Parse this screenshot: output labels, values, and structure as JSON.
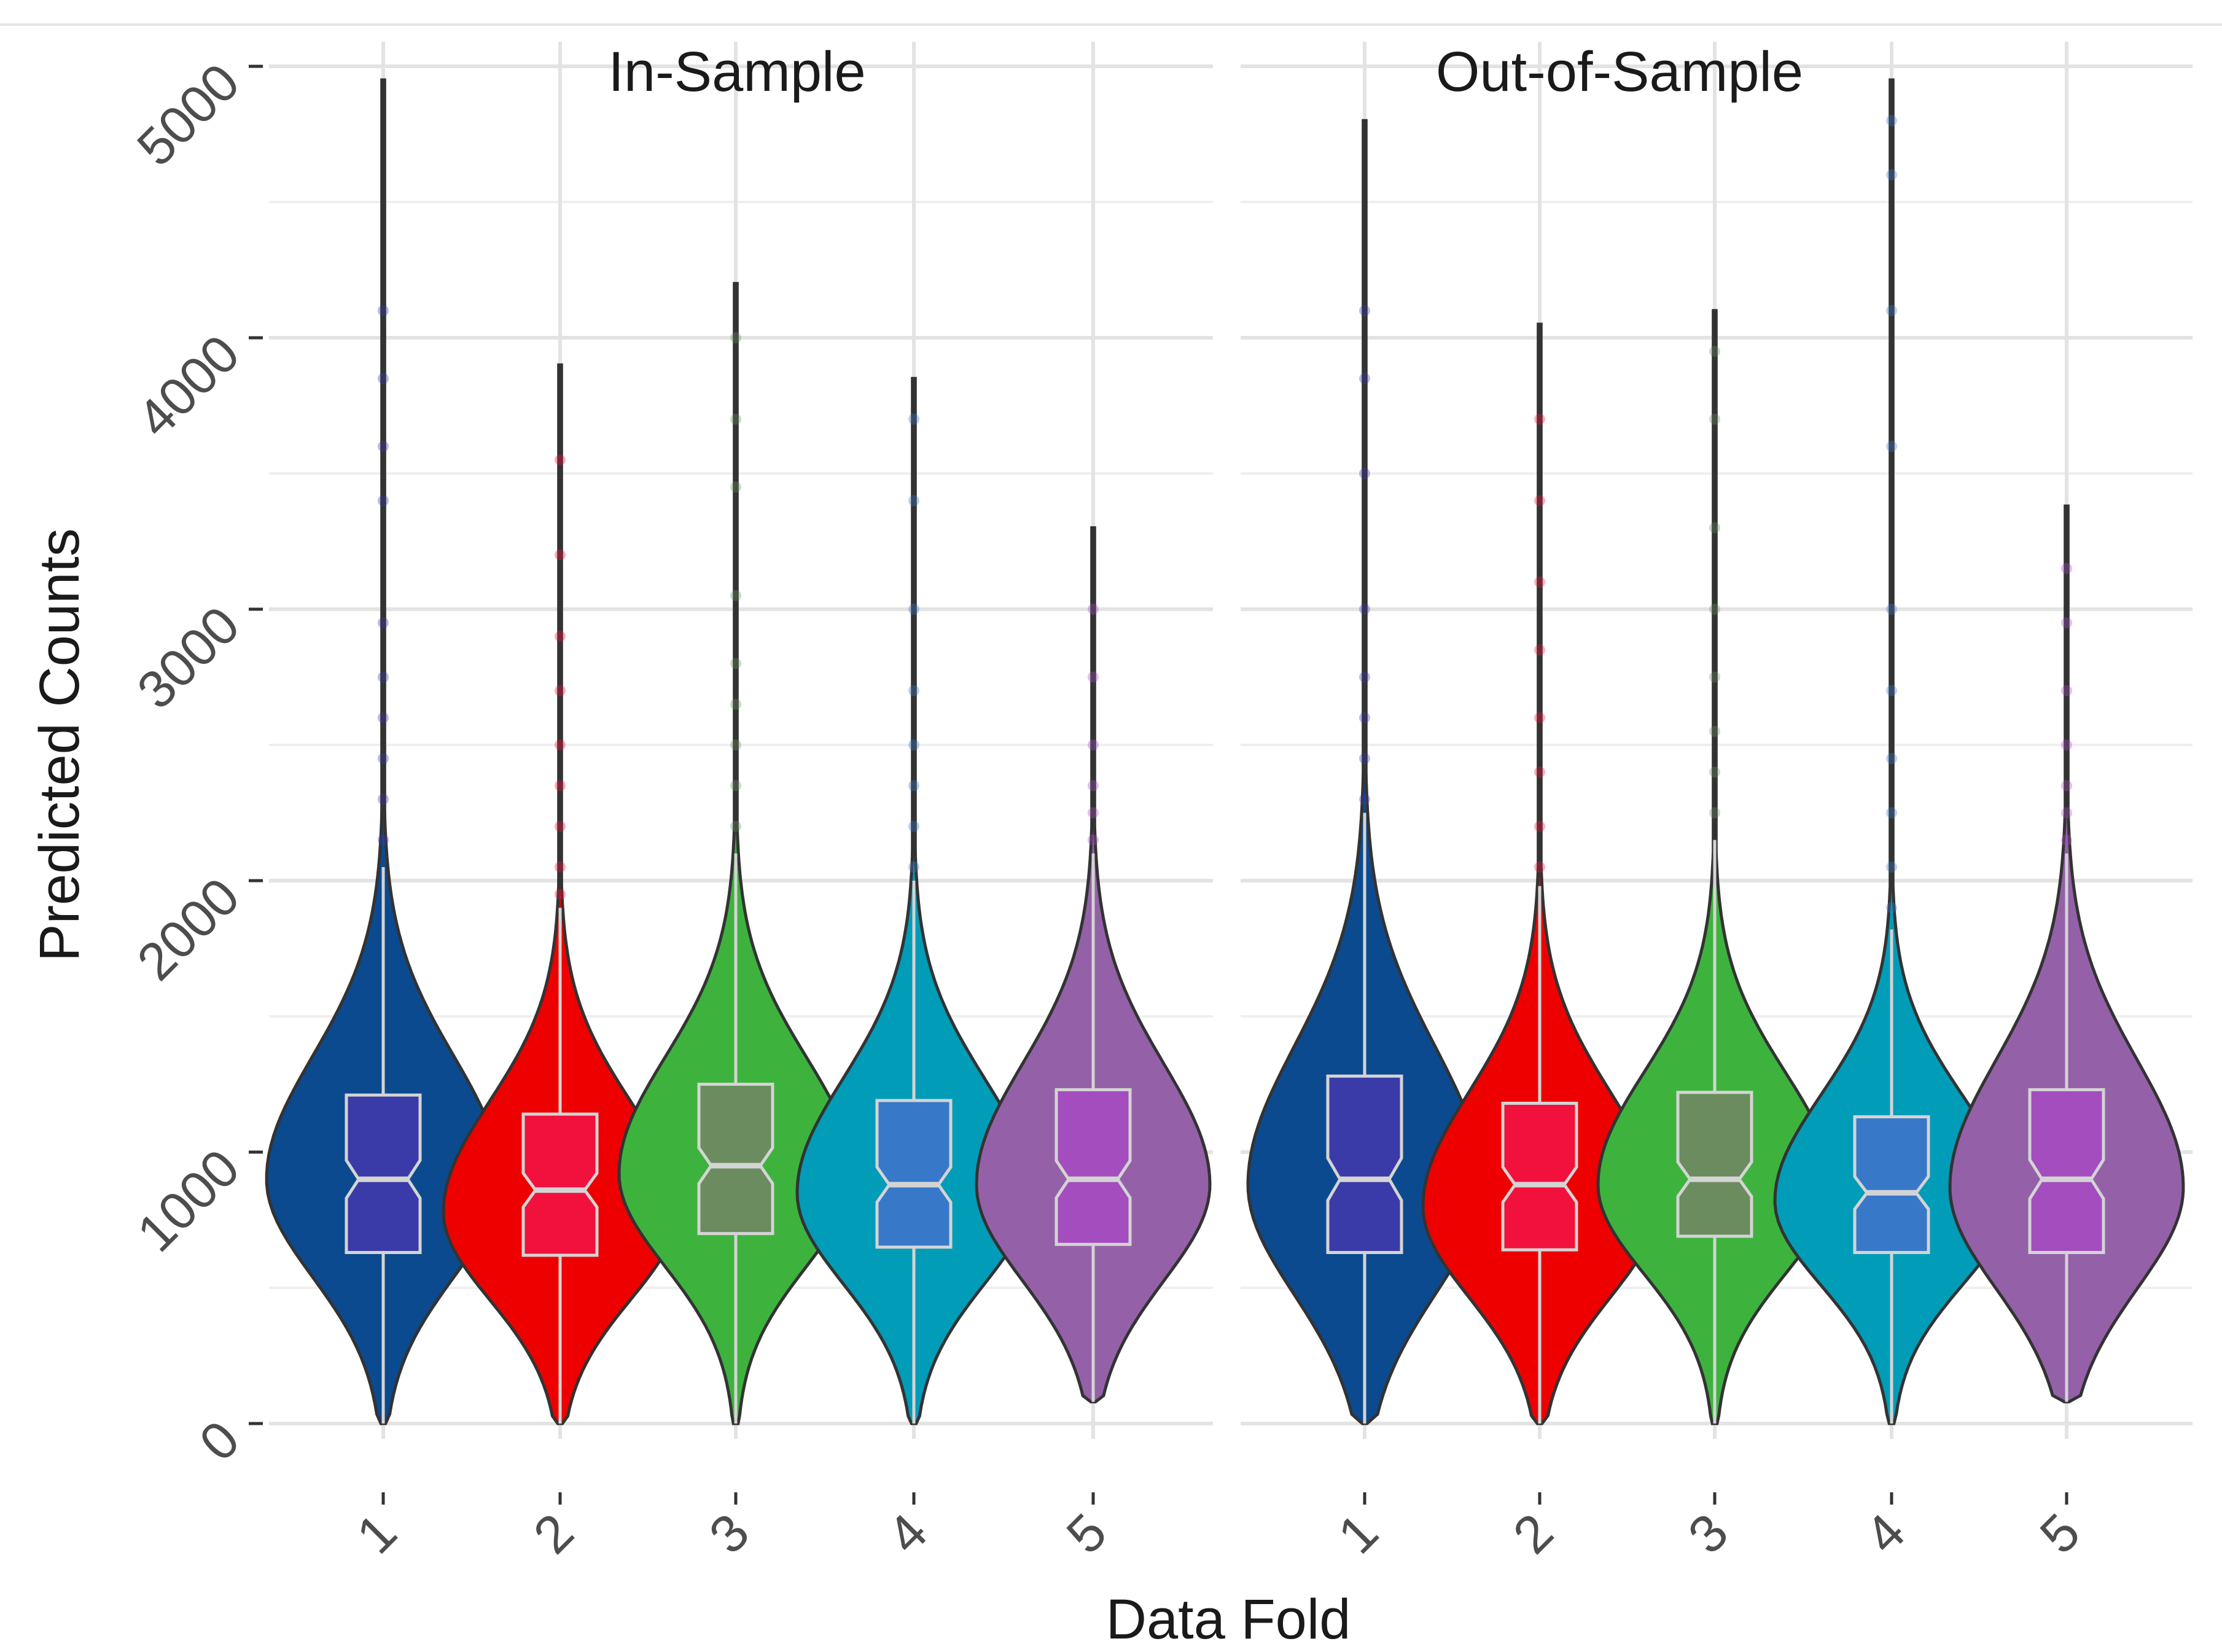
{
  "chart_data": {
    "type": "violin",
    "xlabel": "Data Fold",
    "ylabel": "Predicted Counts",
    "ylim": [
      0,
      5000
    ],
    "y_ticks": [
      0,
      1000,
      2000,
      3000,
      4000,
      5000
    ],
    "y_tick_labels": [
      "0",
      "1000",
      "2000",
      "3000",
      "4000",
      "5000"
    ],
    "categories": [
      "1",
      "2",
      "3",
      "4",
      "5"
    ],
    "grid": "on",
    "legend": "none",
    "fold_colors": {
      "violin": [
        "#0b4a8f",
        "#ee0000",
        "#3db33d",
        "#009cb8",
        "#9461a8"
      ],
      "box": [
        "#3a3aa8",
        "#f2103d",
        "#6b8c5e",
        "#3878c8",
        "#a34dbf"
      ]
    },
    "panels": [
      {
        "title": "In-Sample",
        "folds": [
          {
            "fold": "1",
            "median": 900,
            "q1": 630,
            "q3": 1210,
            "whisker_low": 0,
            "whisker_high": 2050,
            "max": 4950,
            "mode": 900,
            "outliers": [
              2150,
              2300,
              2450,
              2600,
              2750,
              2950,
              3400,
              3600,
              3850,
              4100
            ]
          },
          {
            "fold": "2",
            "median": 860,
            "q1": 620,
            "q3": 1140,
            "whisker_low": 0,
            "whisker_high": 1900,
            "max": 3900,
            "mode": 780,
            "outliers": [
              1950,
              2050,
              2200,
              2350,
              2500,
              2700,
              2900,
              3200,
              3550
            ]
          },
          {
            "fold": "3",
            "median": 950,
            "q1": 700,
            "q3": 1250,
            "whisker_low": 0,
            "whisker_high": 2100,
            "max": 4200,
            "mode": 920,
            "outliers": [
              2200,
              2350,
              2500,
              2650,
              2800,
              3050,
              3450,
              3700,
              4000
            ]
          },
          {
            "fold": "4",
            "median": 880,
            "q1": 650,
            "q3": 1190,
            "whisker_low": 0,
            "whisker_high": 2000,
            "max": 3850,
            "mode": 850,
            "outliers": [
              2050,
              2200,
              2350,
              2500,
              2700,
              3000,
              3400,
              3700
            ]
          },
          {
            "fold": "5",
            "median": 900,
            "q1": 660,
            "q3": 1230,
            "whisker_low": 80,
            "whisker_high": 2100,
            "max": 3300,
            "mode": 880,
            "outliers": [
              2150,
              2250,
              2350,
              2500,
              2750,
              3000
            ]
          }
        ]
      },
      {
        "title": "Out-of-Sample",
        "folds": [
          {
            "fold": "1",
            "median": 900,
            "q1": 630,
            "q3": 1280,
            "whisker_low": 0,
            "whisker_high": 2250,
            "max": 4800,
            "mode": 880,
            "outliers": [
              2300,
              2450,
              2600,
              2750,
              3000,
              3500,
              3850,
              4100
            ]
          },
          {
            "fold": "2",
            "median": 880,
            "q1": 640,
            "q3": 1180,
            "whisker_low": 0,
            "whisker_high": 1980,
            "max": 4050,
            "mode": 800,
            "outliers": [
              2050,
              2200,
              2400,
              2600,
              2850,
              3100,
              3400,
              3700
            ]
          },
          {
            "fold": "3",
            "median": 900,
            "q1": 690,
            "q3": 1220,
            "whisker_low": 0,
            "whisker_high": 2150,
            "max": 4100,
            "mode": 880,
            "outliers": [
              2250,
              2400,
              2550,
              2750,
              3000,
              3300,
              3700,
              3950
            ]
          },
          {
            "fold": "4",
            "median": 850,
            "q1": 630,
            "q3": 1130,
            "whisker_low": 0,
            "whisker_high": 1820,
            "max": 4950,
            "mode": 820,
            "outliers": [
              1900,
              2050,
              2250,
              2450,
              2700,
              3000,
              3600,
              4100,
              4600,
              4800
            ]
          },
          {
            "fold": "5",
            "median": 900,
            "q1": 630,
            "q3": 1230,
            "whisker_low": 80,
            "whisker_high": 2100,
            "max": 3380,
            "mode": 870,
            "outliers": [
              2150,
              2250,
              2350,
              2500,
              2700,
              2950,
              3150
            ]
          }
        ]
      }
    ]
  }
}
